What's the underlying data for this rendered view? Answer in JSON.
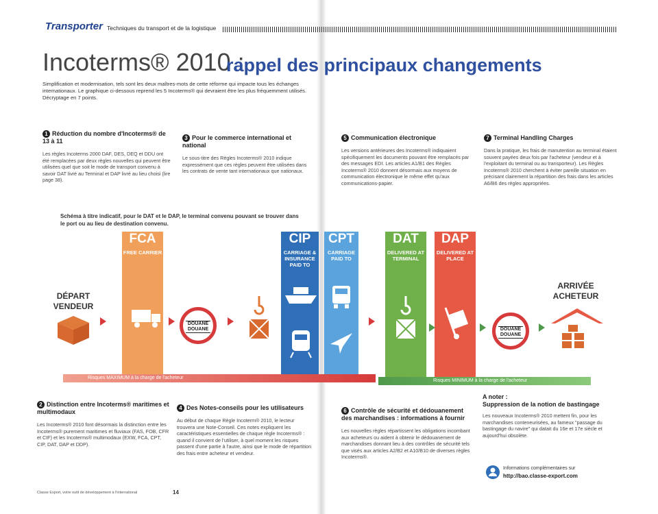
{
  "header": {
    "brand": "Transporter",
    "subtitle": "Techniques du transport et de la logistique"
  },
  "title": {
    "main": "Incoterms® 2010 :",
    "accent": "rappel des principaux changements"
  },
  "intro": "Simplification et modernisation, tels sont les deux maîtres-mots de cette réforme qui impacte tous les échanges internationaux. Le graphique ci-dessous reprend les 5 Incoterms® qui devraient être les plus fréquemment utilisés. Décryptage en 7 points.",
  "sections": {
    "s1": {
      "num": "1",
      "title": "Réduction du nombre d'Incoterms® de 13 à 11",
      "body": "Les règles Incoterms 2000 DAF, DES, DEQ et DDU ont été remplacées par deux règles nouvelles qui peuvent être utilisées quel que soit le mode de transport convenu à savoir DAT livré au Terminal et DAP livré au lieu choisi (lire page 38)."
    },
    "s3": {
      "num": "3",
      "title": "Pour le commerce international et national",
      "body": "Le sous-titre des Règles Incoterms® 2010 indique expressément que ces règles peuvent être utilisées dans les contrats de vente tant internationaux que nationaux."
    },
    "s5": {
      "num": "5",
      "title": "Communication électronique",
      "body": "Les versions antérieures des Incoterms® indiquaient spécifiquement les documents pouvant être remplacés par des messages EDI. Les articles A1/B1 des Règles Incoterms® 2010 donnent désormais aux moyens de communication électronique le même effet qu'aux communications-papier."
    },
    "s7": {
      "num": "7",
      "title": "Terminal Handling Charges",
      "body": "Dans la pratique, les frais de manutention au terminal étaient souvent payées deux fois par l'acheteur (vendeur et à l'exploitant du terminal ou au transporteur). Les Règles Incoterms® 2010 cherchent à éviter pareille situation en précisant clairement la répartition des frais dans les articles A6/B6 des règles appropriées."
    },
    "s2": {
      "num": "2",
      "title": "Distinction entre Incoterms® maritimes et multimodaux",
      "body": "Les Incoterms® 2010 font désormais la distinction entre les Incoterms® purement maritimes et fluviaux (FAS, FOB, CFR et CIF) et les Incoterms® multimodaux (EXW, FCA, CPT, CIP, DAT, DAP et DDP)."
    },
    "s4": {
      "num": "4",
      "title": "Des Notes-conseils pour les utilisateurs",
      "body": "Au début de chaque Règle Incoterm® 2010, le lecteur trouvera une Note-Conseil. Ces notes expliquent les caractéristiques essentielles de chaque règle Incoterms® : quand il convient de l'utiliser, à quel moment les risques passent d'une partie à l'autre, ainsi que le mode de répartition des frais entre acheteur et vendeur."
    },
    "s6": {
      "num": "6",
      "title": "Contrôle de sécurité et dédouanement des marchandises : informations à fournir",
      "body": "Les nouvelles règles répartissent les obligations incombant aux acheteurs ou aident à obtenir le dédouanement de marchandises donnant lieu à des contrôles de sécurité tels que visés aux articles A2/B2 et A10/B10 de diverses règles Incoterms®."
    }
  },
  "note": {
    "label": "A noter :",
    "title": "Suppression de la notion de bastingage",
    "body": "Les nouveaux Incoterms® 2010 mettent fin, pour les marchandises conteneurisées, au fameux \"passage du bastingage du navire\" qui datait du 16e et 17e siècle et aujourd'hui obsolète."
  },
  "info": {
    "label": "Informations complémentaires sur",
    "url": "http://bao.classe-export.com"
  },
  "schema": {
    "caption": "Schéma à titre indicatif, pour le DAT et le DAP, le terminal convenu pouvant se trouver dans le port ou au lieu de destination convenu.",
    "depart": "DÉPART VENDEUR",
    "arrivee": "ARRIVÉE ACHETEUR",
    "douane": "DOUANE DOUANE",
    "columns": [
      {
        "code": "FCA",
        "sub": "FREE CARRIER",
        "color": "#f0a05a"
      },
      {
        "code": "CIP",
        "sub": "CARRIAGE & INSURANCE PAID TO",
        "color": "#2f6fb8"
      },
      {
        "code": "CPT",
        "sub": "CARRIAGE PAID TO",
        "color": "#5aa3dc"
      },
      {
        "code": "DAT",
        "sub": "DELIVERED AT TERMINAL",
        "color": "#6fb04a"
      },
      {
        "code": "DAP",
        "sub": "DELIVERED AT PLACE",
        "color": "#e65a45"
      }
    ],
    "risk_max": "Risques MAXIMUM à la charge de l'acheteur",
    "risk_min": "Risques MINIMUM à la charge de l'acheteur",
    "colors": {
      "red": "#d63a3a",
      "green": "#4f9a4a",
      "gray": "#6d6d6d"
    }
  },
  "footer": {
    "left": "Classe Export, votre outil de développement à l'international",
    "page": "14"
  }
}
